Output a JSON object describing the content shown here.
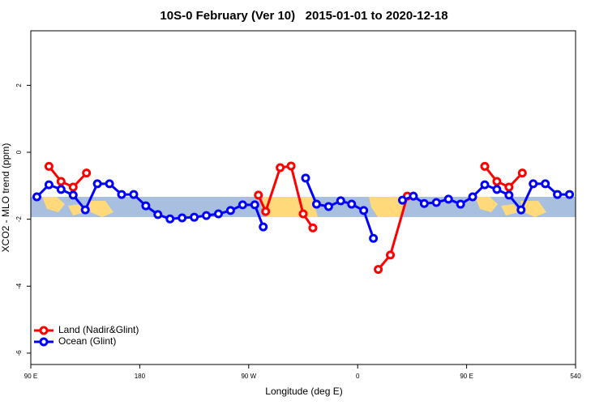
{
  "chart_data": {
    "type": "line",
    "title": "10S-0 February (Ver 10)   2015-01-01 to 2020-12-18",
    "x_label": "Longitude (deg E)",
    "y_label": "XCO2 - MLO trend (ppm)",
    "xlim": [
      90,
      540
    ],
    "ylim": [
      -6.34,
      3.63
    ],
    "xticks": [
      {
        "value": 90,
        "label": "90 E"
      },
      180,
      {
        "value": 270,
        "label": "90 W"
      },
      {
        "value": 360,
        "label": "0"
      },
      {
        "value": 450,
        "label": "90 E"
      },
      540
    ],
    "yticks": [
      -6,
      -4,
      -2,
      0,
      2
    ],
    "legend": "bottom-left",
    "series": [
      {
        "name": "Land (Nadir&Glint)",
        "color": "#ff0000",
        "x": [
          105,
          115,
          125,
          136,
          200,
          278,
          284,
          296,
          305,
          315,
          323,
          350,
          377,
          387,
          401,
          430,
          465,
          475,
          485,
          496
        ],
        "values": [
          -0.42,
          -0.87,
          -1.04,
          -0.62,
          null,
          -1.28,
          -1.77,
          -0.46,
          -0.41,
          -1.84,
          -2.26,
          null,
          -3.5,
          -3.07,
          -1.31,
          null,
          -0.42,
          -0.87,
          -1.04,
          -0.62
        ]
      },
      {
        "name": "Ocean (Glint)",
        "color": "#0000ff",
        "x": [
          95,
          105,
          115,
          125,
          135,
          145,
          155,
          165,
          175,
          185,
          195,
          205,
          215,
          225,
          235,
          245,
          255,
          265,
          275,
          282,
          300,
          317,
          326,
          336,
          346,
          355,
          365,
          373,
          385,
          397,
          406,
          415,
          425,
          435,
          445,
          455,
          465,
          475,
          485,
          495,
          505,
          515,
          525,
          535
        ],
        "values": [
          -1.33,
          -0.97,
          -1.11,
          -1.28,
          -1.72,
          -0.94,
          -0.94,
          -1.26,
          -1.26,
          -1.6,
          -1.86,
          -1.99,
          -1.96,
          -1.94,
          -1.89,
          -1.84,
          -1.74,
          -1.57,
          -1.57,
          -2.23,
          null,
          -0.77,
          -1.55,
          -1.62,
          -1.45,
          -1.55,
          -1.74,
          -2.57,
          null,
          -1.43,
          -1.31,
          -1.53,
          -1.5,
          -1.4,
          -1.55,
          -1.33,
          -0.97,
          -1.11,
          -1.28,
          -1.72,
          -0.94,
          -0.94,
          -1.26,
          -1.26
        ]
      }
    ]
  }
}
